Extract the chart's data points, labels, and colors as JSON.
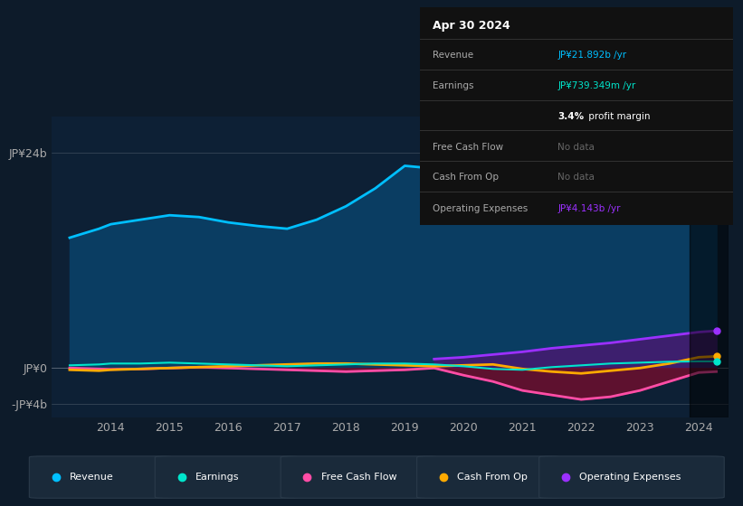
{
  "background_color": "#0d1b2a",
  "chart_bg_color": "#0d2035",
  "years": [
    2013.3,
    2013.8,
    2014.0,
    2014.5,
    2015.0,
    2015.5,
    2016.0,
    2016.5,
    2017.0,
    2017.5,
    2018.0,
    2018.5,
    2019.0,
    2019.5,
    2020.0,
    2020.5,
    2021.0,
    2021.5,
    2022.0,
    2022.5,
    2023.0,
    2023.5,
    2024.0,
    2024.3
  ],
  "revenue": [
    14.5,
    15.5,
    16.0,
    16.5,
    17.0,
    16.8,
    16.2,
    15.8,
    15.5,
    16.5,
    18.0,
    20.0,
    22.5,
    22.2,
    21.5,
    19.5,
    17.5,
    16.5,
    16.8,
    18.5,
    20.5,
    21.5,
    21.892,
    21.9
  ],
  "earnings": [
    0.3,
    0.4,
    0.5,
    0.5,
    0.6,
    0.5,
    0.4,
    0.3,
    0.2,
    0.3,
    0.4,
    0.5,
    0.5,
    0.4,
    0.2,
    -0.1,
    -0.2,
    0.1,
    0.3,
    0.5,
    0.6,
    0.7,
    0.739,
    0.74
  ],
  "free_cash_flow": [
    0.0,
    -0.1,
    -0.15,
    -0.1,
    0.0,
    0.1,
    0.0,
    -0.1,
    -0.2,
    -0.3,
    -0.4,
    -0.3,
    -0.2,
    0.0,
    -0.8,
    -1.5,
    -2.5,
    -3.0,
    -3.5,
    -3.2,
    -2.5,
    -1.5,
    -0.5,
    -0.4
  ],
  "cash_from_op": [
    -0.2,
    -0.3,
    -0.2,
    -0.1,
    0.0,
    0.1,
    0.2,
    0.3,
    0.4,
    0.5,
    0.5,
    0.4,
    0.3,
    0.2,
    0.3,
    0.4,
    -0.1,
    -0.4,
    -0.6,
    -0.3,
    0.0,
    0.5,
    1.2,
    1.3
  ],
  "op_expenses_years": [
    2019.5,
    2020.0,
    2020.5,
    2021.0,
    2021.5,
    2022.0,
    2022.5,
    2023.0,
    2023.5,
    2024.0,
    2024.3
  ],
  "op_expenses": [
    1.0,
    1.2,
    1.5,
    1.8,
    2.2,
    2.5,
    2.8,
    3.2,
    3.6,
    4.0,
    4.143
  ],
  "ylim_top": 28,
  "ylim_bottom": -5.5,
  "ytick_top": 24,
  "ytick_zero": 0,
  "ytick_bottom": -4,
  "xlim_left": 2013.0,
  "xlim_right": 2024.5,
  "xticks": [
    2014,
    2015,
    2016,
    2017,
    2018,
    2019,
    2020,
    2021,
    2022,
    2023,
    2024
  ],
  "revenue_color": "#00bfff",
  "earnings_color": "#00e5cc",
  "free_cash_flow_color": "#ff4da6",
  "cash_from_op_color": "#ffaa00",
  "op_expenses_color": "#9b30ff",
  "revenue_fill_color": "#0a3d62",
  "op_expenses_fill_color": "#3d1f6e",
  "fcf_fill_color": "#6d0f2e",
  "dark_band_start": 2023.85,
  "dark_band_end": 2024.5,
  "legend_items": [
    "Revenue",
    "Earnings",
    "Free Cash Flow",
    "Cash From Op",
    "Operating Expenses"
  ],
  "legend_colors": [
    "#00bfff",
    "#00e5cc",
    "#ff4da6",
    "#ffaa00",
    "#9b30ff"
  ],
  "info_title": "Apr 30 2024",
  "info_rows": [
    {
      "label": "Revenue",
      "value": "JP¥21.892b /yr",
      "value_color": "#00bfff",
      "nodata": false
    },
    {
      "label": "Earnings",
      "value": "JP¥739.349m /yr",
      "value_color": "#00e5cc",
      "nodata": false
    },
    {
      "label": "",
      "value": "3.4% profit margin",
      "value_color": "#ffffff",
      "nodata": false,
      "bold_prefix": "3.4%"
    },
    {
      "label": "Free Cash Flow",
      "value": "No data",
      "value_color": "#666666",
      "nodata": true
    },
    {
      "label": "Cash From Op",
      "value": "No data",
      "value_color": "#666666",
      "nodata": true
    },
    {
      "label": "Operating Expenses",
      "value": "JP¥4.143b /yr",
      "value_color": "#9b30ff",
      "nodata": false
    }
  ]
}
